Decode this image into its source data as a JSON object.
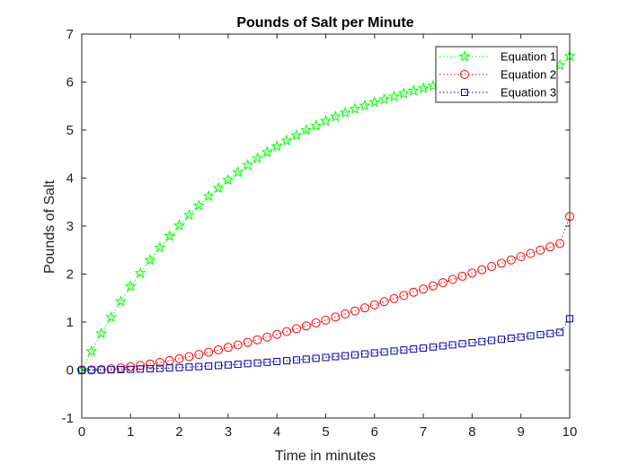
{
  "chart_data": {
    "type": "line",
    "title": "Pounds of Salt per Minute",
    "xlabel": "Time in minutes",
    "ylabel": "Pounds of Salt",
    "xlim": [
      0,
      10
    ],
    "ylim": [
      -1,
      7
    ],
    "xticks": [
      0,
      1,
      2,
      3,
      4,
      5,
      6,
      7,
      8,
      9,
      10
    ],
    "yticks": [
      -1,
      0,
      1,
      2,
      3,
      4,
      5,
      6,
      7
    ],
    "grid": false,
    "legend_position": "top-right",
    "x": [
      0,
      0.2,
      0.4,
      0.6,
      0.8,
      1,
      1.2,
      1.4,
      1.6,
      1.8,
      2,
      2.2,
      2.4,
      2.6,
      2.8,
      3,
      3.2,
      3.4,
      3.6,
      3.8,
      4,
      4.2,
      4.4,
      4.6,
      4.8,
      5,
      5.2,
      5.4,
      5.6,
      5.8,
      6,
      6.2,
      6.4,
      6.6,
      6.8,
      7,
      7.2,
      7.4,
      7.6,
      7.8,
      8,
      8.2,
      8.4,
      8.6,
      8.8,
      9,
      9.2,
      9.4,
      9.6,
      9.8,
      10
    ],
    "series": [
      {
        "name": "Equation 1",
        "color": "#00ff00",
        "marker": "star",
        "line_style": "dotted",
        "values": [
          0,
          0.39,
          0.76,
          1.1,
          1.43,
          1.74,
          2.02,
          2.29,
          2.55,
          2.79,
          3.01,
          3.23,
          3.43,
          3.62,
          3.79,
          3.96,
          4.12,
          4.27,
          4.41,
          4.54,
          4.66,
          4.78,
          4.89,
          5.0,
          5.09,
          5.19,
          5.28,
          5.36,
          5.44,
          5.51,
          5.58,
          5.64,
          5.7,
          5.76,
          5.82,
          5.87,
          5.92,
          5.96,
          6.01,
          6.05,
          6.09,
          6.12,
          6.16,
          6.19,
          6.22,
          6.25,
          6.28,
          6.3,
          6.33,
          6.35,
          6.54
        ]
      },
      {
        "name": "Equation 2",
        "color": "#ff0000",
        "marker": "circle",
        "line_style": "dotted",
        "values": [
          0,
          0.003,
          0.012,
          0.026,
          0.045,
          0.069,
          0.096,
          0.127,
          0.161,
          0.198,
          0.238,
          0.281,
          0.325,
          0.372,
          0.42,
          0.471,
          0.523,
          0.576,
          0.631,
          0.687,
          0.744,
          0.802,
          0.861,
          0.921,
          0.982,
          1.04,
          1.106,
          1.169,
          1.232,
          1.296,
          1.36,
          1.425,
          1.49,
          1.556,
          1.622,
          1.688,
          1.754,
          1.821,
          1.888,
          1.955,
          2.022,
          2.09,
          2.158,
          2.226,
          2.294,
          2.362,
          2.43,
          2.499,
          2.567,
          2.636,
          3.2
        ]
      },
      {
        "name": "Equation 3",
        "color": "#0000b4",
        "marker": "square",
        "line_style": "dotted",
        "values": [
          0,
          0.001,
          0.003,
          0.006,
          0.01,
          0.015,
          0.021,
          0.027,
          0.035,
          0.043,
          0.052,
          0.062,
          0.072,
          0.083,
          0.095,
          0.107,
          0.12,
          0.134,
          0.148,
          0.163,
          0.178,
          0.194,
          0.21,
          0.227,
          0.244,
          0.262,
          0.28,
          0.298,
          0.317,
          0.336,
          0.356,
          0.376,
          0.396,
          0.417,
          0.438,
          0.459,
          0.481,
          0.503,
          0.525,
          0.548,
          0.57,
          0.593,
          0.617,
          0.64,
          0.664,
          0.688,
          0.712,
          0.737,
          0.762,
          0.787,
          1.07
        ]
      }
    ]
  }
}
